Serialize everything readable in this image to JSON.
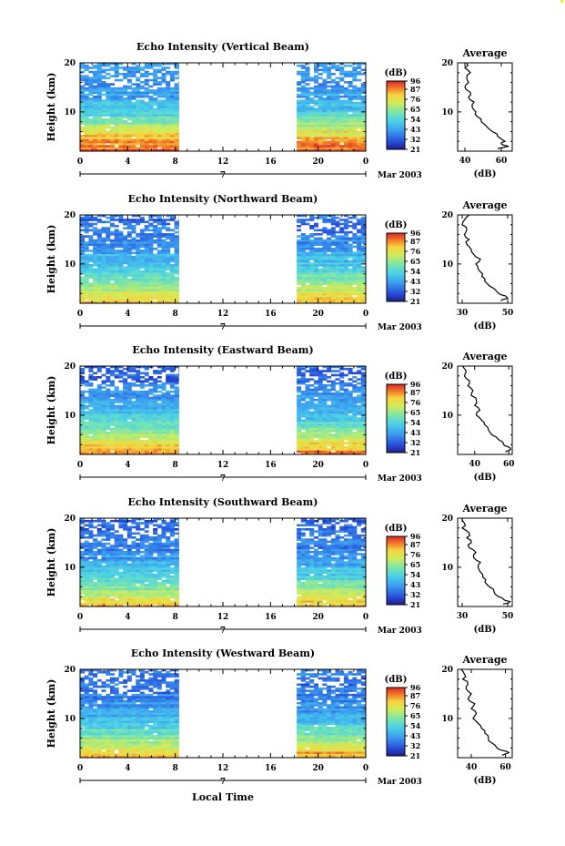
{
  "figure": {
    "xlabel": "Local Time",
    "date_label": "Mar 2003",
    "day_label": "7",
    "colorbar_unit": "(dB)",
    "colorbar_ticks": [
      "96",
      "87",
      "76",
      "65",
      "54",
      "43",
      "32",
      "21"
    ],
    "average_title": "Average",
    "average_xunit": "(dB)"
  },
  "chart_data": [
    {
      "type": "heatmap",
      "title": "Echo Intensity (Vertical Beam)",
      "ylabel": "Height (km)",
      "xlim": [
        0,
        24
      ],
      "ylim": [
        2,
        20
      ],
      "xticks": [
        "0",
        "4",
        "8",
        "12",
        "16",
        "20",
        "0"
      ],
      "yticks": [
        "10",
        "20"
      ],
      "data_gap_hours": [
        8.3,
        18.2
      ],
      "colorbar": {
        "unit": "(dB)",
        "min": 21,
        "max": 96,
        "ticks": [
          96,
          87,
          76,
          65,
          54,
          43,
          32,
          21
        ]
      },
      "profile_by_height": {
        "height_km": [
          2,
          4,
          6,
          8,
          10,
          12,
          14,
          16,
          18,
          20
        ],
        "db": [
          93,
          85,
          75,
          62,
          52,
          46,
          42,
          40,
          42,
          40
        ]
      },
      "average": {
        "title": "Average",
        "xlabel": "(dB)",
        "xticks": [
          "40",
          "60"
        ],
        "xlim": [
          36,
          66
        ],
        "yticks": [
          "10",
          "20"
        ],
        "height_km": [
          2.5,
          3,
          3.5,
          4,
          5,
          6,
          7,
          8,
          9,
          10,
          11,
          12,
          13,
          14,
          15,
          16,
          17,
          18,
          19,
          20
        ],
        "db": [
          58,
          64,
          60,
          62,
          58,
          55,
          52,
          49,
          47,
          46,
          44,
          45,
          42,
          43,
          40,
          42,
          41,
          43,
          40,
          41
        ]
      }
    },
    {
      "type": "heatmap",
      "title": "Echo Intensity (Northward Beam)",
      "ylabel": "Height (km)",
      "xlim": [
        0,
        24
      ],
      "ylim": [
        2,
        20
      ],
      "xticks": [
        "0",
        "4",
        "8",
        "12",
        "16",
        "20",
        "0"
      ],
      "yticks": [
        "10",
        "20"
      ],
      "data_gap_hours": [
        8.3,
        18.2
      ],
      "colorbar": {
        "unit": "(dB)",
        "min": 21,
        "max": 96,
        "ticks": [
          96,
          87,
          76,
          65,
          54,
          43,
          32,
          21
        ]
      },
      "profile_by_height": {
        "height_km": [
          2,
          4,
          6,
          8,
          10,
          12,
          14,
          16,
          18,
          20
        ],
        "db": [
          80,
          74,
          66,
          56,
          50,
          44,
          40,
          36,
          34,
          34
        ]
      },
      "average": {
        "title": "Average",
        "xlabel": "(dB)",
        "xticks": [
          "30",
          "50"
        ],
        "xlim": [
          28,
          52
        ],
        "yticks": [
          "10",
          "20"
        ],
        "height_km": [
          2.5,
          3,
          3.5,
          4,
          5,
          6,
          7,
          8,
          9,
          10,
          11,
          12,
          13,
          14,
          15,
          16,
          17,
          18,
          19,
          20
        ],
        "db": [
          47,
          50,
          49,
          46,
          44,
          41,
          40,
          39,
          37,
          36,
          38,
          35,
          34,
          32,
          33,
          31,
          32,
          30,
          31,
          33
        ]
      }
    },
    {
      "type": "heatmap",
      "title": "Echo Intensity (Eastward Beam)",
      "ylabel": "Height (km)",
      "xlim": [
        0,
        24
      ],
      "ylim": [
        2,
        20
      ],
      "xticks": [
        "0",
        "4",
        "8",
        "12",
        "16",
        "20",
        "0"
      ],
      "yticks": [
        "10",
        "20"
      ],
      "data_gap_hours": [
        8.3,
        18.2
      ],
      "colorbar": {
        "unit": "(dB)",
        "min": 21,
        "max": 96,
        "ticks": [
          96,
          87,
          76,
          65,
          54,
          43,
          32,
          21
        ]
      },
      "profile_by_height": {
        "height_km": [
          2,
          4,
          6,
          8,
          10,
          12,
          14,
          16,
          18,
          20
        ],
        "db": [
          88,
          78,
          66,
          56,
          50,
          44,
          40,
          36,
          34,
          34
        ]
      },
      "average": {
        "title": "Average",
        "xlabel": "(dB)",
        "xticks": [
          "40",
          "60"
        ],
        "xlim": [
          30,
          62
        ],
        "yticks": [
          "10",
          "20"
        ],
        "height_km": [
          2.5,
          3,
          3.5,
          4,
          5,
          6,
          7,
          8,
          9,
          10,
          11,
          12,
          13,
          14,
          15,
          16,
          17,
          18,
          19,
          20
        ],
        "db": [
          58,
          61,
          60,
          57,
          54,
          50,
          48,
          46,
          44,
          41,
          43,
          40,
          41,
          38,
          39,
          36,
          37,
          34,
          35,
          33
        ]
      }
    },
    {
      "type": "heatmap",
      "title": "Echo Intensity (Southward Beam)",
      "ylabel": "Height (km)",
      "xlim": [
        0,
        24
      ],
      "ylim": [
        2,
        20
      ],
      "xticks": [
        "0",
        "4",
        "8",
        "12",
        "16",
        "20",
        "0"
      ],
      "yticks": [
        "10",
        "20"
      ],
      "data_gap_hours": [
        8.3,
        18.2
      ],
      "colorbar": {
        "unit": "(dB)",
        "min": 21,
        "max": 96,
        "ticks": [
          96,
          87,
          76,
          65,
          54,
          43,
          32,
          21
        ]
      },
      "profile_by_height": {
        "height_km": [
          2,
          4,
          6,
          8,
          10,
          12,
          14,
          16,
          18,
          20
        ],
        "db": [
          82,
          72,
          62,
          54,
          48,
          42,
          38,
          36,
          34,
          34
        ]
      },
      "average": {
        "title": "Average",
        "xlabel": "(dB)",
        "xticks": [
          "30",
          "50"
        ],
        "xlim": [
          28,
          52
        ],
        "yticks": [
          "10",
          "20"
        ],
        "height_km": [
          2.5,
          3,
          3.5,
          4,
          5,
          6,
          7,
          8,
          9,
          10,
          11,
          12,
          13,
          14,
          15,
          16,
          17,
          18,
          19,
          20
        ],
        "db": [
          48,
          51,
          48,
          46,
          44,
          42,
          40,
          39,
          38,
          37,
          38,
          35,
          36,
          33,
          34,
          32,
          33,
          30,
          31,
          30
        ]
      }
    },
    {
      "type": "heatmap",
      "title": "Echo Intensity (Westward Beam)",
      "ylabel": "Height (km)",
      "xlim": [
        0,
        24
      ],
      "ylim": [
        2,
        20
      ],
      "xticks": [
        "0",
        "4",
        "8",
        "12",
        "16",
        "20",
        "0"
      ],
      "yticks": [
        "10",
        "20"
      ],
      "data_gap_hours": [
        8.3,
        18.2
      ],
      "colorbar": {
        "unit": "(dB)",
        "min": 21,
        "max": 96,
        "ticks": [
          96,
          87,
          76,
          65,
          54,
          43,
          32,
          21
        ]
      },
      "profile_by_height": {
        "height_km": [
          2,
          4,
          6,
          8,
          10,
          12,
          14,
          16,
          18,
          20
        ],
        "db": [
          88,
          76,
          64,
          54,
          48,
          42,
          38,
          36,
          34,
          34
        ]
      },
      "average": {
        "title": "Average",
        "xlabel": "(dB)",
        "xticks": [
          "40",
          "60"
        ],
        "xlim": [
          32,
          64
        ],
        "yticks": [
          "10",
          "20"
        ],
        "height_km": [
          2.5,
          3,
          3.5,
          4,
          5,
          6,
          7,
          8,
          9,
          10,
          11,
          12,
          13,
          14,
          15,
          16,
          17,
          18,
          19,
          20
        ],
        "db": [
          58,
          62,
          58,
          55,
          52,
          50,
          48,
          46,
          44,
          41,
          43,
          40,
          42,
          38,
          40,
          37,
          38,
          35,
          36,
          34
        ]
      }
    }
  ]
}
